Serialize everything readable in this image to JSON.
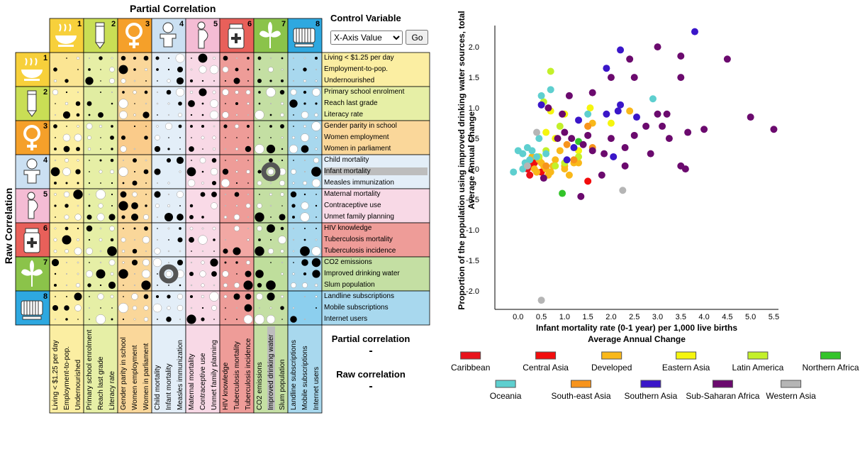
{
  "matrix": {
    "top_title": "Partial Correlation",
    "side_title": "Raw Correlation",
    "control_title": "Control Variable",
    "control_select": "X-Axis Value",
    "go_label": "Go",
    "partial_label": "Partial correlation",
    "partial_value": "-",
    "raw_label": "Raw correlation",
    "raw_value": "-",
    "groups": [
      {
        "num": "1",
        "color": "#f7d03b",
        "bg": "#fbeea2",
        "icon": "bowl-icon"
      },
      {
        "num": "2",
        "color": "#c9de55",
        "bg": "#e6efa6",
        "icon": "pencil-icon"
      },
      {
        "num": "3",
        "color": "#f5a02a",
        "bg": "#fad79a",
        "icon": "female-symbol-icon"
      },
      {
        "num": "4",
        "color": "#cbe0f2",
        "bg": "#e3eef8",
        "icon": "child-icon"
      },
      {
        "num": "5",
        "color": "#f4bcd4",
        "bg": "#f8d9e6",
        "icon": "pregnant-woman-icon"
      },
      {
        "num": "6",
        "color": "#e8605a",
        "bg": "#ee9c98",
        "icon": "medicine-bottle-icon"
      },
      {
        "num": "7",
        "color": "#8bc34a",
        "bg": "#c4dfa3",
        "icon": "tree-icon"
      },
      {
        "num": "8",
        "color": "#2ea8e0",
        "bg": "#a8d8ee",
        "icon": "computer-icon"
      }
    ],
    "indicators": [
      "Living < $1.25 per day",
      "Employment-to-pop.",
      "Undernourished",
      "Primary school enrolment",
      "Reach last grade",
      "Literacy rate",
      "Gender parity in school",
      "Women employment",
      "Women in parliament",
      "Child mortality",
      "Infant mortality",
      "Measles immunization",
      "Maternal mortality",
      "Contraceptive use",
      "Unmet family planning",
      "HIV knowledge",
      "Tuberculosis mortality",
      "Tuberculosis incidence",
      "CO2 emissions",
      "Improved drinking water",
      "Slum population",
      "Landline subscriptions",
      "Mobile subscriptions",
      "Internet users"
    ],
    "selected_row": "Infant mortality",
    "selected_col": "Improved drinking water"
  },
  "chart_data": {
    "type": "scatter",
    "xlabel": "Infant mortality rate (0-1 year) per 1,000 live births",
    "xlabel2": "Average Annual Change",
    "ylabel": "Proportion of the population using improved drinking water sources, total",
    "ylabel2": "Average Annual Change",
    "xlim": [
      -0.5,
      5.6
    ],
    "ylim": [
      -2.3,
      2.35
    ],
    "xticks": [
      "0.0",
      "0.5",
      "1.0",
      "1.5",
      "2.0",
      "2.5",
      "3.0",
      "3.5",
      "4.0",
      "4.5",
      "5.0",
      "5.5"
    ],
    "yticks": [
      "-2.0",
      "-1.5",
      "-1.0",
      "-0.5",
      "0.0",
      "0.5",
      "1.0",
      "1.5",
      "2.0"
    ],
    "legend": [
      {
        "name": "Caribbean",
        "color": "#e8121b"
      },
      {
        "name": "Central Asia",
        "color": "#f20c0c"
      },
      {
        "name": "Developed",
        "color": "#f9b81a"
      },
      {
        "name": "Eastern Asia",
        "color": "#f5f50e"
      },
      {
        "name": "Latin America",
        "color": "#c3f02a"
      },
      {
        "name": "Northern Africa",
        "color": "#33c42a"
      },
      {
        "name": "Oceania",
        "color": "#5ecfcf"
      },
      {
        "name": "South-east Asia",
        "color": "#f7941d"
      },
      {
        "name": "Southern Asia",
        "color": "#3a16c9"
      },
      {
        "name": "Sub-Saharan Africa",
        "color": "#6b0a6e"
      },
      {
        "name": "Western Asia",
        "color": "#b5b5b5"
      }
    ],
    "series": [
      {
        "name": "Caribbean",
        "points": [
          [
            0.3,
            0.05
          ],
          [
            0.25,
            -0.1
          ],
          [
            0.35,
            0.1
          ],
          [
            0.2,
            0.0
          ],
          [
            0.4,
            -0.05
          ]
        ]
      },
      {
        "name": "Central Asia",
        "points": [
          [
            1.5,
            -0.2
          ],
          [
            0.3,
            0.1
          ],
          [
            0.5,
            -0.05
          ]
        ]
      },
      {
        "name": "Developed",
        "points": [
          [
            0.3,
            0.2
          ],
          [
            0.5,
            0.1
          ],
          [
            0.6,
            0.0
          ],
          [
            0.7,
            -0.05
          ],
          [
            0.8,
            0.15
          ],
          [
            1.0,
            0.0
          ],
          [
            1.1,
            -0.1
          ],
          [
            0.9,
            0.3
          ],
          [
            1.2,
            0.1
          ],
          [
            0.4,
            -0.05
          ],
          [
            0.35,
            0.0
          ],
          [
            1.5,
            0.7
          ],
          [
            1.6,
            0.75
          ],
          [
            1.3,
            0.1
          ],
          [
            1.0,
            0.05
          ],
          [
            0.55,
            0.05
          ],
          [
            0.75,
            0.05
          ],
          [
            0.65,
            -0.1
          ],
          [
            0.45,
            0.15
          ],
          [
            2.4,
            0.95
          ]
        ]
      },
      {
        "name": "Eastern Asia",
        "points": [
          [
            0.7,
            0.95
          ],
          [
            1.0,
            0.9
          ],
          [
            1.55,
            1.0
          ],
          [
            2.0,
            0.75
          ],
          [
            1.3,
            0.3
          ],
          [
            0.8,
            0.5
          ],
          [
            0.6,
            0.6
          ]
        ]
      },
      {
        "name": "Latin America",
        "points": [
          [
            0.7,
            1.6
          ],
          [
            0.55,
            1.1
          ],
          [
            0.9,
            0.7
          ],
          [
            1.3,
            0.2
          ],
          [
            0.6,
            0.3
          ],
          [
            0.45,
            0.2
          ],
          [
            1.0,
            0.1
          ],
          [
            0.8,
            0.05
          ]
        ]
      },
      {
        "name": "Northern Africa",
        "points": [
          [
            0.95,
            -0.4
          ],
          [
            1.3,
            0.45
          ]
        ]
      },
      {
        "name": "Oceania",
        "points": [
          [
            0.0,
            0.3
          ],
          [
            0.1,
            0.25
          ],
          [
            0.2,
            0.35
          ],
          [
            0.3,
            0.3
          ],
          [
            0.4,
            0.2
          ],
          [
            0.5,
            1.2
          ],
          [
            0.7,
            1.3
          ],
          [
            1.5,
            0.9
          ],
          [
            2.9,
            1.15
          ],
          [
            0.25,
            0.15
          ],
          [
            0.15,
            0.1
          ],
          [
            0.45,
            0.5
          ],
          [
            0.6,
            0.25
          ],
          [
            -0.1,
            -0.05
          ],
          [
            0.1,
            0.0
          ]
        ]
      },
      {
        "name": "South-east Asia",
        "points": [
          [
            1.5,
            0.7
          ],
          [
            1.05,
            0.4
          ],
          [
            1.2,
            0.15
          ],
          [
            1.6,
            0.35
          ],
          [
            0.6,
            0.05
          ]
        ]
      },
      {
        "name": "Southern Asia",
        "points": [
          [
            0.5,
            1.05
          ],
          [
            1.9,
            1.65
          ],
          [
            2.2,
            1.95
          ],
          [
            1.9,
            0.9
          ],
          [
            2.2,
            1.05
          ],
          [
            1.3,
            0.8
          ],
          [
            2.05,
            0.2
          ],
          [
            1.2,
            0.35
          ],
          [
            1.05,
            0.15
          ],
          [
            3.8,
            2.25
          ],
          [
            2.55,
            0.85
          ],
          [
            2.15,
            0.95
          ]
        ]
      },
      {
        "name": "Sub-Saharan Africa",
        "points": [
          [
            3.0,
            2.0
          ],
          [
            2.4,
            1.8
          ],
          [
            3.5,
            1.85
          ],
          [
            4.5,
            1.8
          ],
          [
            2.5,
            1.5
          ],
          [
            3.5,
            1.5
          ],
          [
            2.0,
            1.5
          ],
          [
            1.6,
            1.25
          ],
          [
            1.1,
            1.2
          ],
          [
            0.65,
            1.0
          ],
          [
            1.0,
            0.6
          ],
          [
            1.5,
            0.55
          ],
          [
            2.5,
            0.55
          ],
          [
            2.0,
            0.5
          ],
          [
            3.0,
            0.9
          ],
          [
            3.2,
            0.9
          ],
          [
            2.75,
            0.7
          ],
          [
            3.1,
            0.7
          ],
          [
            3.65,
            0.6
          ],
          [
            4.0,
            0.65
          ],
          [
            5.0,
            0.85
          ],
          [
            5.5,
            0.65
          ],
          [
            2.85,
            0.25
          ],
          [
            3.5,
            0.05
          ],
          [
            3.6,
            0.0
          ],
          [
            3.25,
            0.5
          ],
          [
            2.3,
            0.35
          ],
          [
            1.4,
            0.4
          ],
          [
            1.6,
            0.3
          ],
          [
            1.85,
            0.25
          ],
          [
            2.3,
            0.05
          ],
          [
            1.8,
            -0.1
          ],
          [
            1.35,
            -0.45
          ],
          [
            0.55,
            -0.15
          ],
          [
            0.85,
            0.5
          ],
          [
            1.15,
            0.5
          ],
          [
            0.95,
            0.9
          ]
        ]
      },
      {
        "name": "Western Asia",
        "points": [
          [
            0.5,
            -2.15
          ],
          [
            2.25,
            -0.35
          ],
          [
            0.4,
            0.6
          ],
          [
            0.2,
            0.05
          ]
        ]
      }
    ]
  }
}
